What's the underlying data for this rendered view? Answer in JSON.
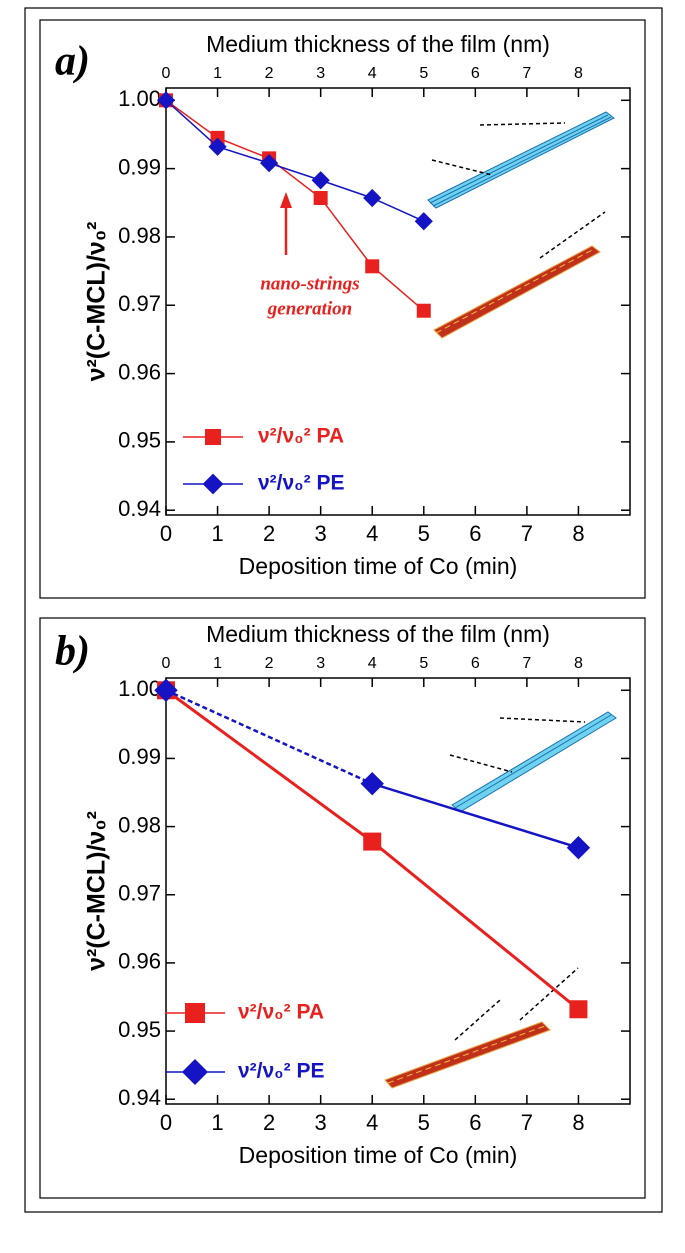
{
  "chart_data": [
    {
      "type": "line",
      "panel_label": "a)",
      "x2label": "Medium thickness of the film (nm)",
      "x2lim": [
        0,
        9
      ],
      "x2ticks": [
        0,
        1,
        2,
        3,
        4,
        5,
        6,
        7,
        8
      ],
      "xlabel": "Deposition time of Co (min)",
      "xlim": [
        0,
        9
      ],
      "xticks": [
        0,
        1,
        2,
        3,
        4,
        5,
        6,
        7,
        8
      ],
      "ylabel": "ν²(C-MCL)/ν₀²",
      "ylim": [
        0.9393,
        1.0018
      ],
      "yticks": [
        {
          "value": 1,
          "label": "1.00"
        },
        0.99,
        0.98,
        0.97,
        0.96,
        0.95,
        0.94
      ],
      "x": [
        0,
        1,
        2,
        3,
        4,
        5
      ],
      "series": [
        {
          "name": "ν²/ν₀² PA",
          "color": "#e8211e",
          "marker": "square",
          "values": [
            1.0,
            0.9945,
            0.9915,
            0.9857,
            0.9757,
            0.9692
          ]
        },
        {
          "name": "ν²/ν₀² PE",
          "color": "#1414c4",
          "marker": "diamond",
          "values": [
            1.0,
            0.9932,
            0.9908,
            0.9883,
            0.9857,
            0.9823
          ]
        }
      ],
      "annotation": [
        "nano-strings",
        "generation"
      ]
    },
    {
      "type": "line",
      "panel_label": "b)",
      "x2label": "Medium thickness of the film (nm)",
      "x2lim": [
        0,
        9
      ],
      "x2ticks": [
        0,
        1,
        2,
        3,
        4,
        5,
        6,
        7,
        8
      ],
      "xlabel": "Deposition time of Co (min)",
      "xlim": [
        0,
        9
      ],
      "xticks": [
        0,
        1,
        2,
        3,
        4,
        5,
        6,
        7,
        8
      ],
      "ylabel": "ν²(C-MCL)/ν₀²",
      "ylim": [
        0.9393,
        1.0018
      ],
      "yticks": [
        {
          "value": 1,
          "label": "1.00"
        },
        0.99,
        0.98,
        0.97,
        0.96,
        0.95,
        0.94
      ],
      "x": [
        0,
        4,
        8
      ],
      "series": [
        {
          "name": "ν²/ν₀² PA",
          "color": "#e8211e",
          "marker": "square",
          "values": [
            1.0,
            0.9778,
            0.9532
          ]
        },
        {
          "name": "ν²/ν₀² PE",
          "color": "#1414c4",
          "marker": "diamond",
          "values": [
            1.0,
            0.9863,
            0.9769
          ],
          "dashed_until_x": 4
        }
      ]
    }
  ]
}
